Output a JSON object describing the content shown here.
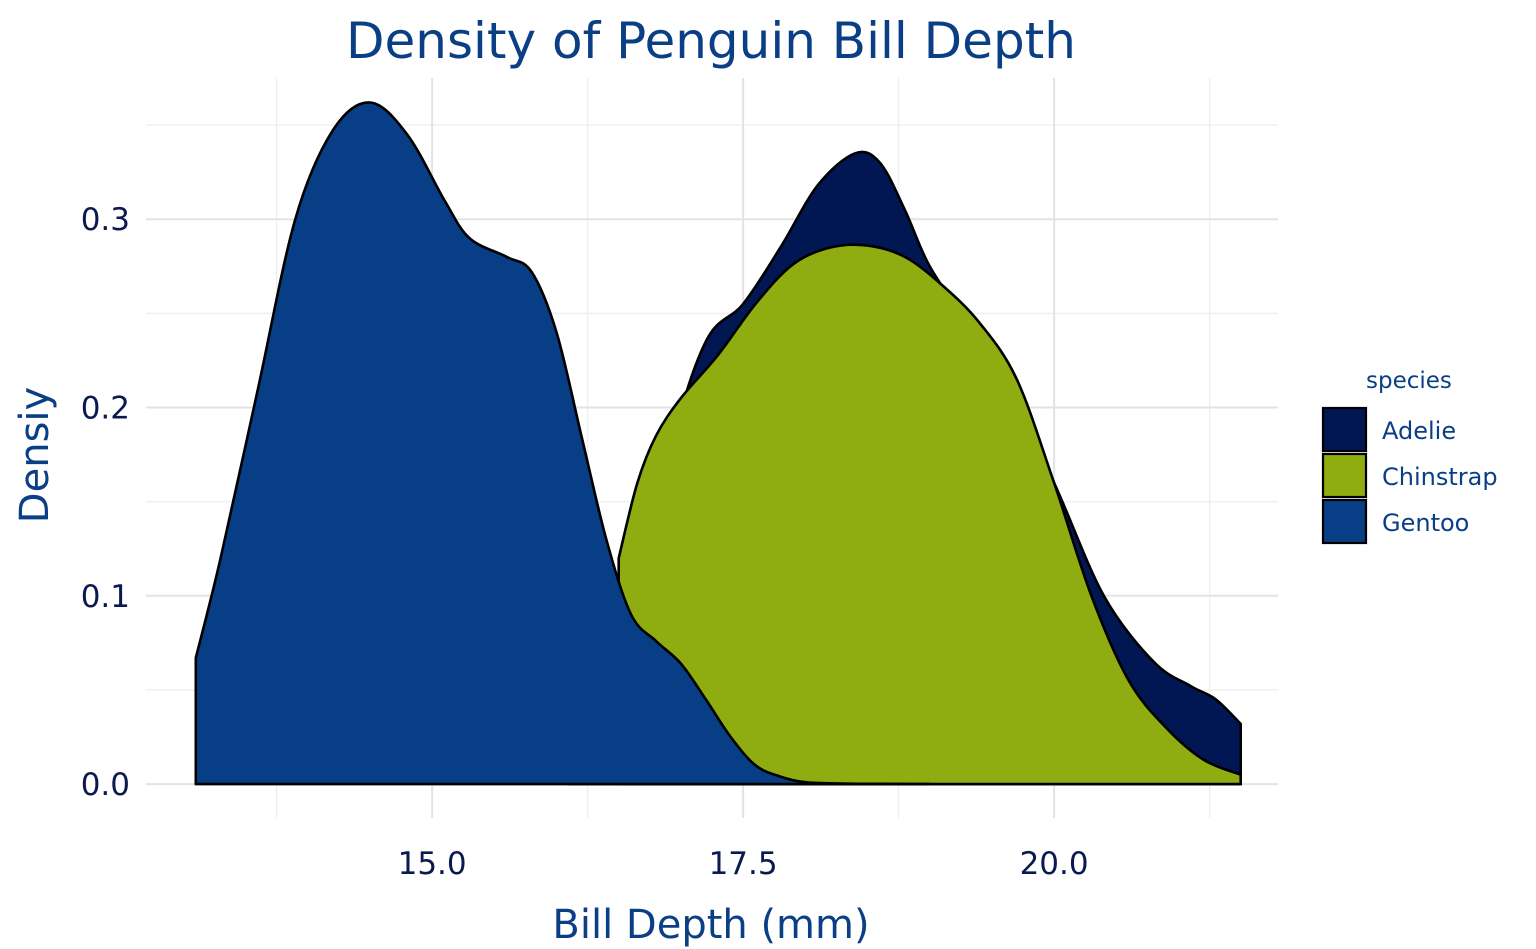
{
  "chart_data": {
    "type": "area",
    "title": "Density of Penguin Bill Depth",
    "xlabel": "Bill Depth (mm)",
    "ylabel": "Densiy",
    "xlim": [
      12.7,
      21.8
    ],
    "ylim": [
      -0.018,
      0.375
    ],
    "x_ticks": [
      15.0,
      17.5,
      20.0
    ],
    "x_tick_labels": [
      "15.0",
      "17.5",
      "20.0"
    ],
    "x_minor_ticks": [
      13.75,
      16.25,
      18.75,
      21.25
    ],
    "y_ticks": [
      0.0,
      0.1,
      0.2,
      0.3
    ],
    "y_tick_labels": [
      "0.0",
      "0.1",
      "0.2",
      "0.3"
    ],
    "y_minor_ticks": [
      0.05,
      0.15,
      0.25,
      0.35
    ],
    "grid": true,
    "legend": {
      "title": "species",
      "position": "right",
      "entries": [
        "Adelie",
        "Chinstrap",
        "Gentoo"
      ]
    },
    "series": [
      {
        "name": "Adelie",
        "color": "#001754",
        "x": [
          16.1,
          16.5,
          16.9,
          17.2,
          17.5,
          17.8,
          18.1,
          18.4,
          18.6,
          18.8,
          19.0,
          19.3,
          19.6,
          20.0,
          20.4,
          20.8,
          21.1,
          21.3,
          21.5
        ],
        "y": [
          0.0,
          0.065,
          0.175,
          0.235,
          0.255,
          0.285,
          0.318,
          0.335,
          0.33,
          0.305,
          0.275,
          0.245,
          0.215,
          0.16,
          0.1,
          0.065,
          0.052,
          0.045,
          0.032
        ]
      },
      {
        "name": "Chinstrap",
        "color": "#8fac10",
        "x": [
          16.5,
          16.65,
          16.8,
          17.0,
          17.3,
          17.6,
          17.9,
          18.2,
          18.5,
          18.8,
          19.1,
          19.4,
          19.7,
          20.0,
          20.3,
          20.6,
          20.9,
          21.2,
          21.5
        ],
        "y": [
          0.12,
          0.16,
          0.185,
          0.205,
          0.228,
          0.255,
          0.276,
          0.285,
          0.286,
          0.28,
          0.265,
          0.245,
          0.215,
          0.16,
          0.1,
          0.055,
          0.03,
          0.013,
          0.005
        ]
      },
      {
        "name": "Gentoo",
        "color": "#073e85",
        "x": [
          13.1,
          13.3,
          13.6,
          13.9,
          14.2,
          14.5,
          14.8,
          15.1,
          15.3,
          15.6,
          15.8,
          16.0,
          16.2,
          16.4,
          16.6,
          16.8,
          17.0,
          17.2,
          17.4,
          17.6,
          17.8,
          18.0,
          18.3,
          18.7,
          19.0
        ],
        "y": [
          0.067,
          0.12,
          0.21,
          0.3,
          0.347,
          0.362,
          0.345,
          0.31,
          0.29,
          0.28,
          0.272,
          0.24,
          0.185,
          0.13,
          0.09,
          0.076,
          0.064,
          0.045,
          0.025,
          0.01,
          0.004,
          0.001,
          0.0003,
          0.0001,
          0.0
        ]
      }
    ]
  }
}
